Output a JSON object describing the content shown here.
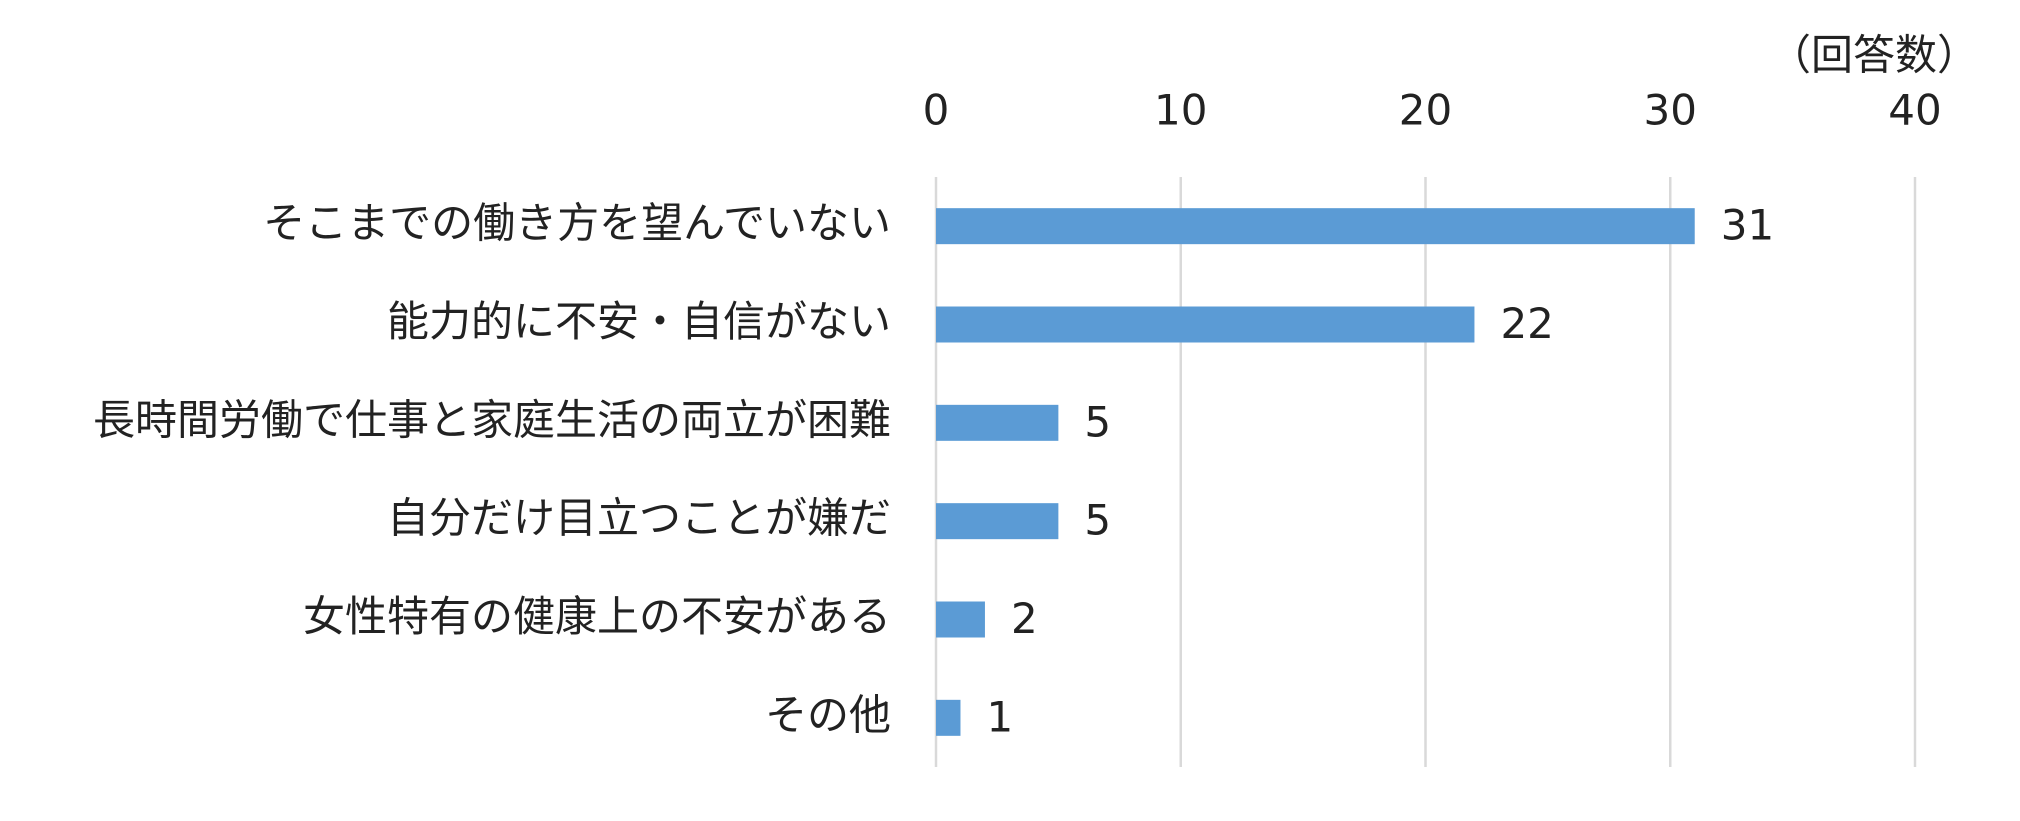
{
  "chart_data": {
    "type": "hbar",
    "x_label": "（回答数）",
    "categories": [
      "そこまでの働き方を望んでいない",
      "能力的に不安・自信がない",
      "長時間労働で仕事と家庭生活の両立が困難",
      "自分だけ目立つことが嫌だ",
      "女性特有の健康上の不安がある",
      "その他"
    ],
    "values": [
      31,
      22,
      5,
      5,
      2,
      1
    ],
    "color": "#5b9bd5",
    "xlim": [
      0,
      40
    ],
    "xticks": [
      0,
      10,
      20,
      30,
      40
    ],
    "grid": true
  }
}
